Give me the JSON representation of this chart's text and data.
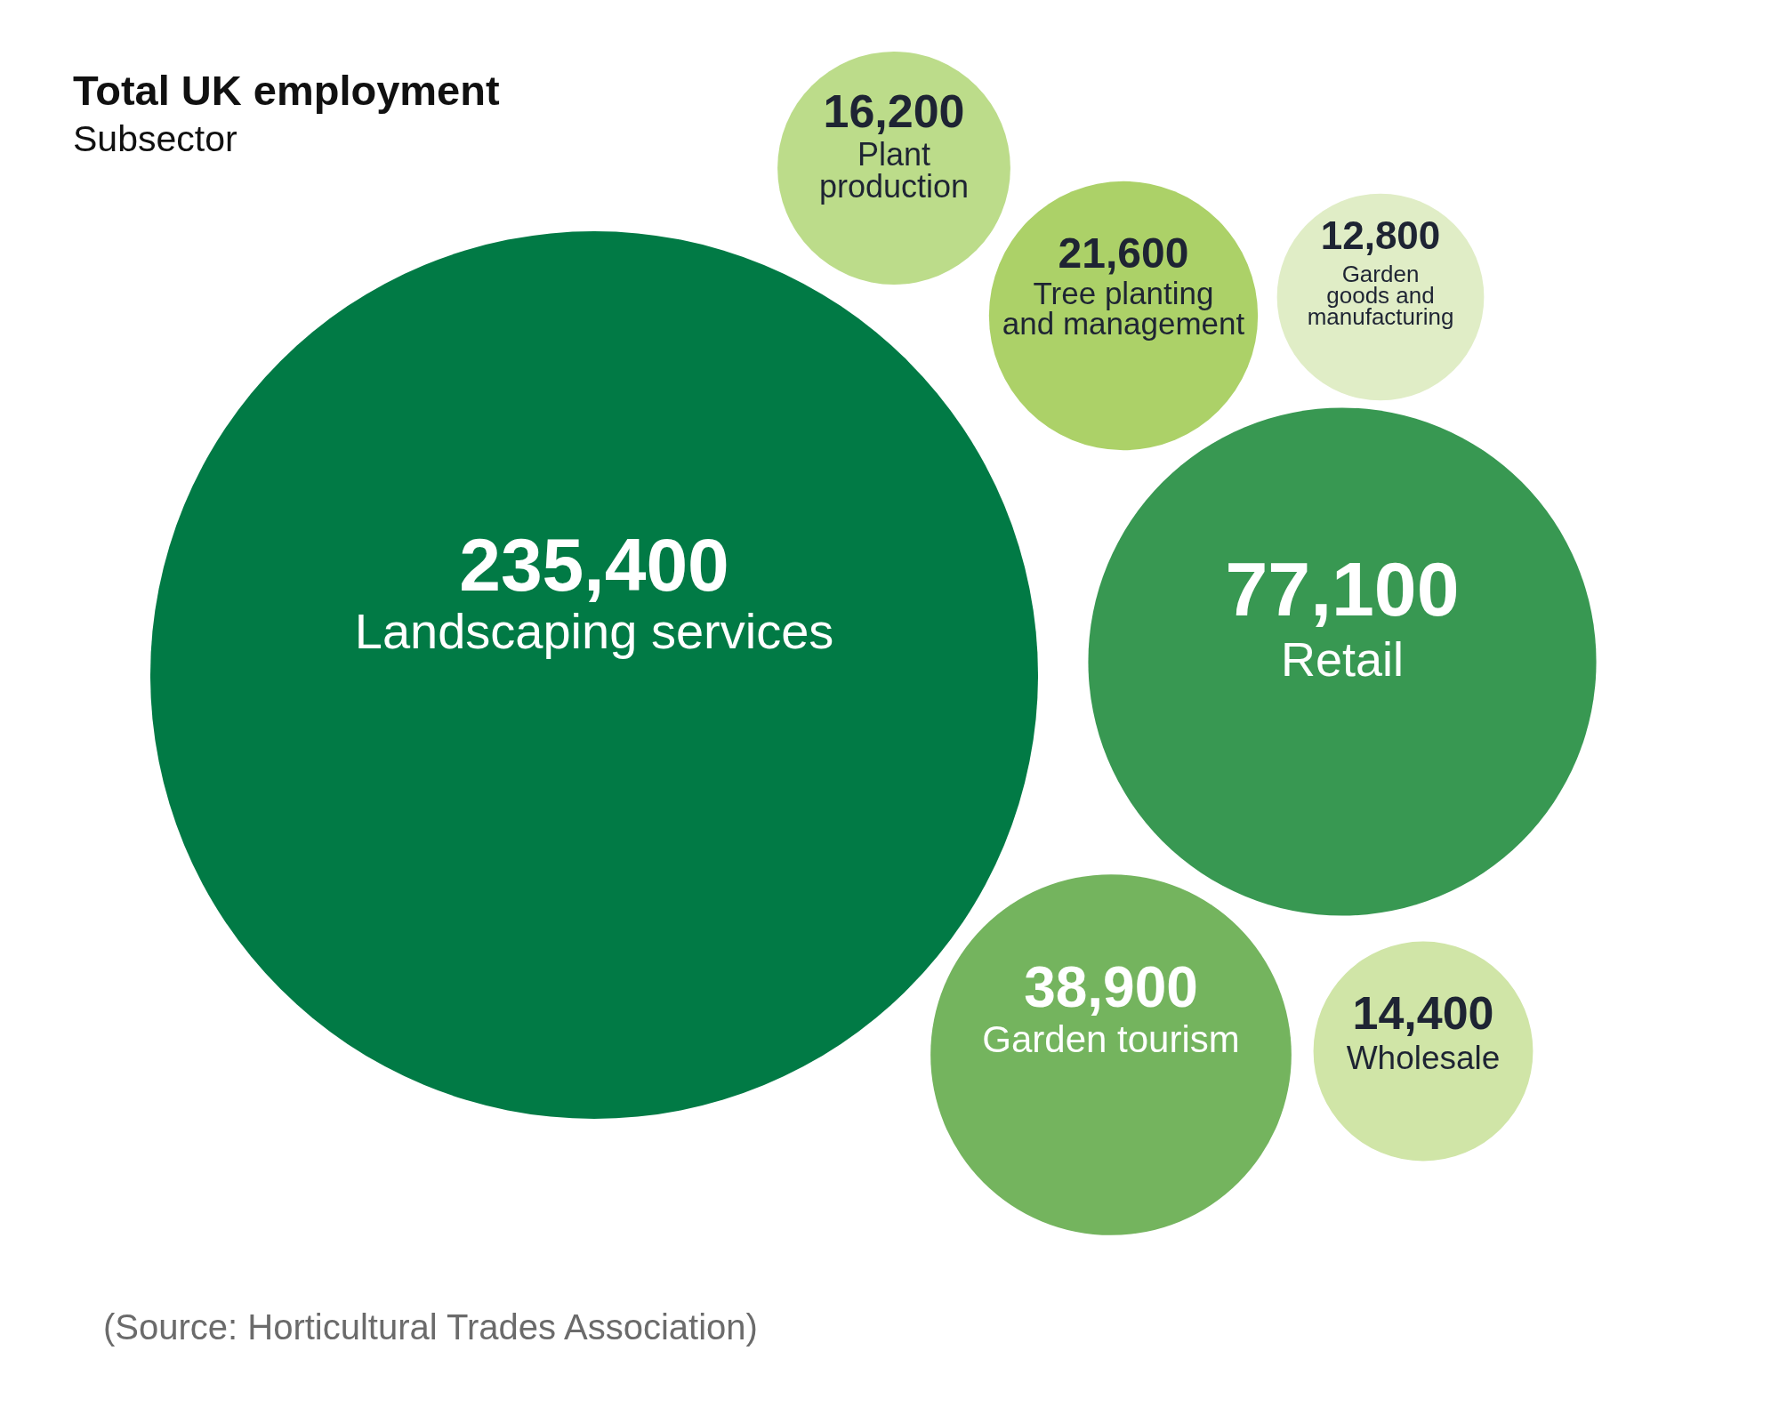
{
  "chart_data": {
    "type": "other",
    "title": "Total UK employment",
    "subtitle": "Subsector",
    "categories": [
      "Landscaping services",
      "Plant production",
      "Tree planting and management",
      "Garden goods and manufacturing",
      "Retail",
      "Garden tourism",
      "Wholesale"
    ],
    "values": [
      235400,
      16200,
      21600,
      12800,
      77100,
      38900,
      14400
    ],
    "value_labels": [
      "235,400",
      "16,200",
      "21,600",
      "12,800",
      "77,100",
      "38,900",
      "14,400"
    ],
    "colors": [
      "#017a45",
      "#bcdc8a",
      "#acd168",
      "#e0edc6",
      "#389852",
      "#74b45e",
      "#d0e5a7"
    ],
    "annotations": [
      "(Source: Horticultural Trades Association)"
    ]
  }
}
